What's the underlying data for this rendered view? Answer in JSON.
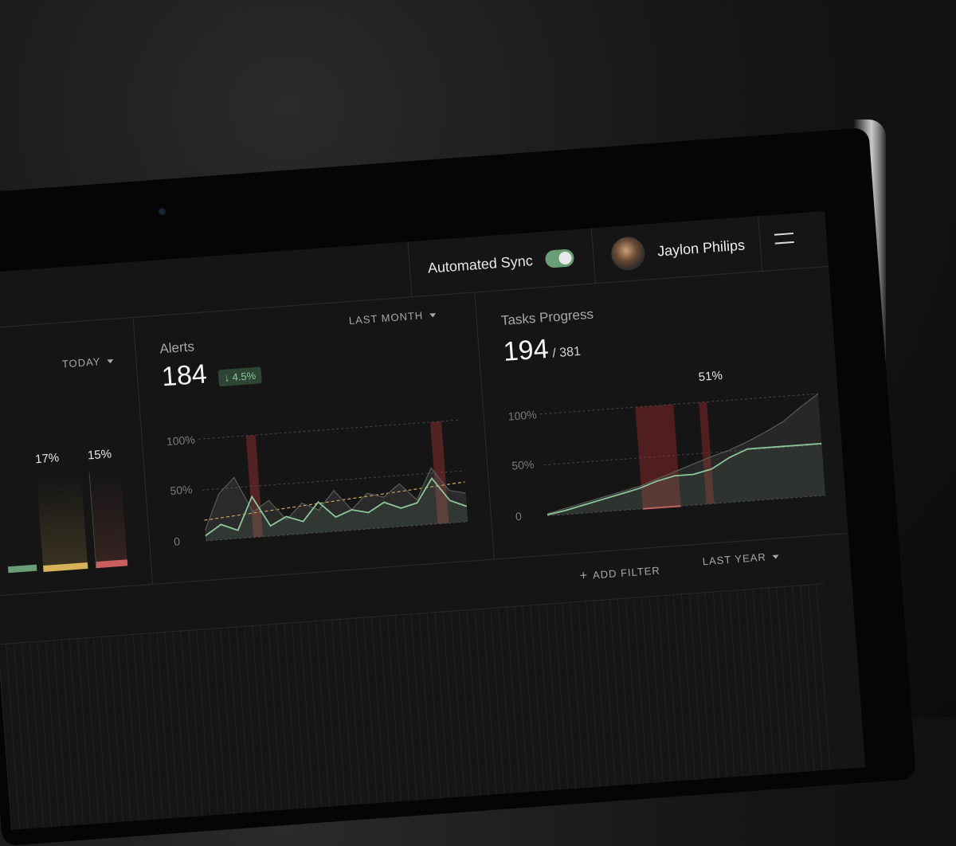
{
  "header": {
    "sync_label": "Automated Sync",
    "sync_on": true,
    "user_name": "Jaylon Philips"
  },
  "panel_left": {
    "period": "TODAY",
    "bars": [
      {
        "label": "17%",
        "value": 17,
        "color": "#d6b35a"
      },
      {
        "label": "15%",
        "value": 15,
        "color": "#c9605d"
      }
    ]
  },
  "alerts": {
    "title": "Alerts",
    "period": "LAST MONTH",
    "value": "184",
    "change": "↓ 4.5%",
    "y_ticks": [
      "100%",
      "50%",
      "0"
    ]
  },
  "tasks": {
    "title": "Tasks Progress",
    "done": "194",
    "total": "/ 381",
    "marker_label": "51%",
    "y_ticks": [
      "100%",
      "50%",
      "0"
    ]
  },
  "bottom": {
    "add_filter": "ADD FILTER",
    "period": "LAST YEAR"
  },
  "chart_data": [
    {
      "type": "line",
      "title": "Alerts",
      "series": [
        {
          "values": [
            10,
            45,
            60,
            25,
            35,
            15,
            30,
            22,
            40,
            20,
            35,
            30,
            42,
            25,
            55,
            32,
            28
          ]
        },
        {
          "values": [
            5,
            15,
            8,
            40,
            10,
            18,
            12,
            30,
            14,
            20,
            16,
            25,
            18,
            22,
            45,
            22,
            15
          ]
        }
      ],
      "ylim": [
        0,
        100
      ]
    },
    {
      "type": "line",
      "title": "Tasks Progress",
      "series": [
        {
          "values": [
            2,
            6,
            10,
            14,
            18,
            22,
            28,
            34,
            40,
            46,
            51,
            58,
            66,
            75,
            88,
            100
          ]
        },
        {
          "values": [
            1,
            4,
            8,
            12,
            16,
            20,
            26,
            30,
            30,
            34,
            44,
            51,
            51,
            51,
            51,
            51
          ]
        }
      ],
      "ylim": [
        0,
        100
      ],
      "annotation": "51%"
    }
  ]
}
